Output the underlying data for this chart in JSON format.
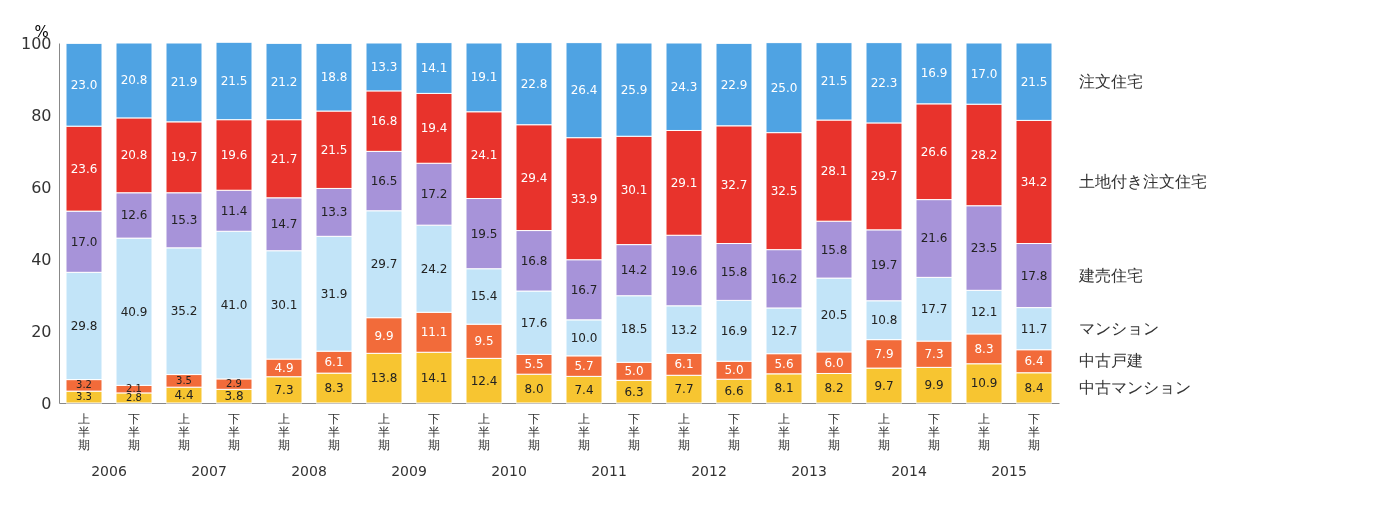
{
  "chart_data": {
    "type": "bar",
    "stacked": true,
    "legend": "right",
    "ylabel": "%",
    "categories": [
      "上半期",
      "下半期",
      "上半期",
      "下半期",
      "上半期",
      "下半期",
      "上半期",
      "下半期",
      "上半期",
      "下半期",
      "上半期",
      "下半期",
      "上半期",
      "下半期",
      "上半期",
      "下半期",
      "上半期",
      "下半期",
      "上半期",
      "下半期"
    ],
    "annotations": [
      "2006",
      "2007",
      "2008",
      "2009",
      "2010",
      "2011",
      "2012",
      "2013",
      "2014",
      "2015"
    ],
    "ylim": [
      0,
      100
    ],
    "yticks": [
      0,
      20,
      40,
      60,
      80,
      100
    ],
    "series": [
      {
        "name": "中古マンション",
        "color": "#f7c531",
        "values": [
          3.3,
          2.8,
          4.4,
          3.8,
          7.3,
          8.3,
          13.8,
          14.1,
          12.4,
          8.0,
          7.4,
          6.3,
          7.7,
          6.6,
          8.1,
          8.2,
          9.7,
          9.9,
          10.9,
          8.4
        ],
        "value_labels": [
          "3.3",
          "2.8",
          "4.4",
          "3.8",
          "7.3",
          "8.3",
          "13.8",
          "14.1",
          "12.4",
          "8.0",
          "7.4",
          "6.3",
          "7.7",
          "6.6",
          "8.1",
          "8.2",
          "9.7",
          "9.9",
          "10.9",
          "8.4"
        ]
      },
      {
        "name": "中古戸建",
        "color": "#f26b3a",
        "values": [
          3.2,
          2.1,
          3.5,
          2.9,
          4.9,
          6.1,
          9.9,
          11.1,
          9.5,
          5.5,
          5.7,
          5.0,
          6.1,
          5.0,
          5.6,
          6.0,
          7.9,
          7.3,
          8.3,
          6.4
        ],
        "value_labels": [
          "3.2",
          "2.1",
          "3.5",
          "2.9",
          "4.9",
          "6.1",
          "9.9",
          "11.1",
          "9.5",
          "5.5",
          "5.7",
          "5.0",
          "6.1",
          "5.0",
          "5.6",
          "6.0",
          "7.9",
          "7.3",
          "8.3",
          "6.4"
        ]
      },
      {
        "name": "マンション",
        "color": "#c2e4f8",
        "values": [
          29.8,
          40.9,
          35.2,
          41.0,
          30.1,
          31.9,
          29.7,
          24.2,
          15.4,
          17.6,
          10.0,
          18.5,
          13.2,
          16.9,
          12.7,
          20.5,
          10.8,
          17.7,
          12.1,
          11.7
        ],
        "value_labels": [
          "29.8",
          "40.9",
          "35.2",
          "41.0",
          "30.1",
          "31.9",
          "29.7",
          "24.2",
          "15.4",
          "17.6",
          "10.0",
          "18.5",
          "13.2",
          "16.9",
          "12.7",
          "20.5",
          "10.8",
          "17.7",
          "12.1",
          "11.7"
        ]
      },
      {
        "name": "建売住宅",
        "color": "#a793d9",
        "values": [
          17.0,
          12.6,
          15.3,
          11.4,
          14.7,
          13.3,
          16.5,
          17.2,
          19.5,
          16.8,
          16.7,
          14.2,
          19.6,
          15.8,
          16.2,
          15.8,
          19.7,
          21.6,
          23.5,
          17.8
        ],
        "value_labels": [
          "17.0",
          "12.6",
          "15.3",
          "11.4",
          "14.7",
          "13.3",
          "16.5",
          "17.2",
          "19.5",
          "16.8",
          "16.7",
          "14.2",
          "19.6",
          "15.8",
          "16.2",
          "15.8",
          "19.7",
          "21.6",
          "23.5",
          "17.8"
        ]
      },
      {
        "name": "土地付き注文住宅",
        "color": "#e8332c",
        "values": [
          23.6,
          20.8,
          19.7,
          19.6,
          21.7,
          21.5,
          16.8,
          19.4,
          24.1,
          29.4,
          33.9,
          30.1,
          29.1,
          32.7,
          32.5,
          28.1,
          29.7,
          26.6,
          28.2,
          34.2
        ],
        "value_labels": [
          "23.6",
          "20.8",
          "19.7",
          "19.6",
          "21.7",
          "21.5",
          "16.8",
          "19.4",
          "24.1",
          "29.4",
          "33.9",
          "30.1",
          "29.1",
          "32.7",
          "32.5",
          "28.1",
          "29.7",
          "26.6",
          "28.2",
          "34.2"
        ]
      },
      {
        "name": "注文住宅",
        "color": "#4fa3e3",
        "values": [
          23.0,
          20.8,
          21.9,
          21.5,
          21.2,
          18.8,
          13.3,
          14.1,
          19.1,
          22.8,
          26.4,
          25.9,
          24.3,
          22.9,
          25.0,
          21.5,
          22.3,
          16.9,
          17.0,
          21.5
        ],
        "value_labels": [
          "23.0",
          "20.8",
          "21.9",
          "21.5",
          "21.2",
          "18.8",
          "13.3",
          "14.1",
          "19.1",
          "22.8",
          "26.4",
          "25.9",
          "24.3",
          "22.9",
          "25.0",
          "21.5",
          "22.3",
          "16.9",
          "17.0",
          "21.5"
        ]
      }
    ]
  }
}
